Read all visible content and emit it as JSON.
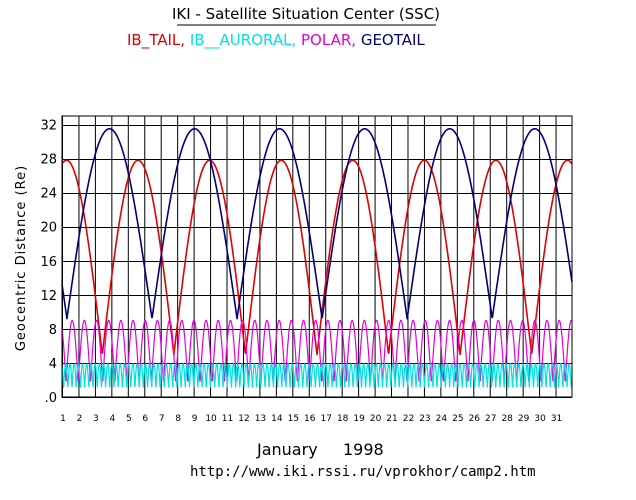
{
  "chart_data": {
    "type": "line",
    "title": "IKI - Satellite Situation Center (SSC)",
    "legend": [
      {
        "name": "IB_TAIL",
        "color": "#e00000",
        "separator": ","
      },
      {
        "name": "IB__AURORAL",
        "color": "#00e0e0",
        "separator": ","
      },
      {
        "name": "POLAR",
        "color": "#e000e0",
        "separator": ","
      },
      {
        "name": "GEOTAIL",
        "color": "#00007a",
        "separator": ""
      }
    ],
    "ylabel": "Geocentric Distance (Re)",
    "ytick_labels": [
      ".0",
      "4",
      "8",
      "12",
      "16",
      "20",
      "24",
      "28",
      "32"
    ],
    "ytick_values": [
      0,
      4,
      8,
      12,
      16,
      20,
      24,
      28,
      32
    ],
    "ylim": [
      0,
      33
    ],
    "xlim": [
      1,
      32
    ],
    "xticks": [
      1,
      2,
      3,
      4,
      5,
      6,
      7,
      8,
      9,
      10,
      11,
      12,
      13,
      14,
      15,
      16,
      17,
      18,
      19,
      20,
      21,
      22,
      23,
      24,
      25,
      26,
      27,
      28,
      29,
      30,
      31
    ],
    "xlabel_month": "January",
    "xlabel_year": "1998",
    "grid": true,
    "series": [
      {
        "name": "IB_TAIL",
        "color": "#e00000",
        "model": "orbit",
        "min": 5.0,
        "max": 27.8,
        "period_days": 4.35,
        "perigee_days": [
          3.45,
          7.8,
          12.15,
          16.5,
          20.85,
          25.2,
          29.55
        ],
        "apogee_days": [
          1.2,
          5.6,
          9.9,
          14.3,
          18.7,
          23.0,
          27.4,
          31.8
        ]
      },
      {
        "name": "GEOTAIL",
        "color": "#00007a",
        "model": "orbit",
        "min": 9.2,
        "max": 31.5,
        "period_days": 5.17,
        "perigee_days": [
          1.3,
          6.5,
          11.7,
          16.85,
          22.0,
          27.15
        ],
        "apogee_days": [
          3.9,
          9.05,
          14.2,
          19.4,
          24.55,
          29.7
        ]
      },
      {
        "name": "POLAR",
        "color": "#e000e0",
        "model": "orbit",
        "min": 1.6,
        "max": 9.0,
        "period_days": 0.74,
        "perigee_days": [
          1.25,
          1.99,
          2.73,
          3.47,
          4.21
        ],
        "apogee_days": [
          1.62,
          2.36,
          3.1,
          3.84,
          4.58
        ]
      },
      {
        "name": "IB__AURORAL",
        "color": "#00e0e0",
        "model": "orbit",
        "min": 1.1,
        "max": 3.9,
        "period_days": 0.255,
        "perigee_days": [
          1.1,
          1.355,
          1.61
        ],
        "apogee_days": [
          1.23,
          1.48,
          1.74
        ]
      }
    ]
  },
  "footer": {
    "url": "http://www.iki.rssi.ru/vprokhor/camp2.htm"
  }
}
